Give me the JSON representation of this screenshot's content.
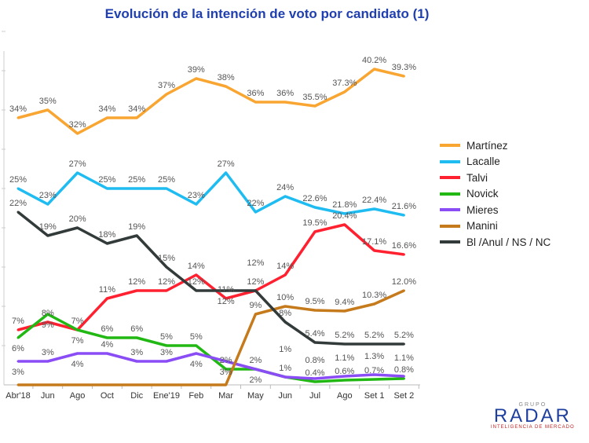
{
  "title": "Evolución de la intención de voto por candidato (1)",
  "logo": {
    "top": "GRUPO",
    "main": "RADAR",
    "sub": "INTELIGENCIA DE MERCADO"
  },
  "chart_data": {
    "type": "line",
    "title": "Evolución de la intención de voto por candidato (1)",
    "categories": [
      "Abr'18",
      "Jun",
      "Ago",
      "Oct",
      "Dic",
      "Ene'19",
      "Feb",
      "Mar",
      "May",
      "Jun",
      "Jul",
      "Ago",
      "Set 1",
      "Set 2"
    ],
    "ylim": [
      0,
      45
    ],
    "grid": false,
    "legend": "right",
    "series": [
      {
        "name": "Martínez",
        "color": "#f9a531",
        "values": [
          34,
          35,
          32,
          34,
          34,
          37,
          39,
          38,
          36,
          36,
          35.5,
          37.3,
          40.2,
          39.3
        ],
        "labels": [
          "34%",
          "35%",
          "32%",
          "34%",
          "34%",
          "37%",
          "39%",
          "38%",
          "36%",
          "36%",
          "35.5%",
          "37.3%",
          "40.2%",
          "39.3%"
        ]
      },
      {
        "name": "Lacalle",
        "color": "#1fbcf2",
        "values": [
          25,
          23,
          27,
          25,
          25,
          25,
          23,
          27,
          22,
          24,
          22.6,
          21.8,
          22.4,
          21.6
        ],
        "labels": [
          "25%",
          "23%",
          "27%",
          "25%",
          "25%",
          "25%",
          "23%",
          "27%",
          "22%",
          "24%",
          "22.6%",
          "21.8%",
          "22.4%",
          "21.6%"
        ]
      },
      {
        "name": "Talvi",
        "color": "#ff2030",
        "values": [
          7,
          8,
          7,
          11,
          12,
          12,
          14,
          11,
          12,
          14,
          19.5,
          20.4,
          17.1,
          16.6
        ],
        "labels": [
          "7%",
          "8%",
          "7%",
          "11%",
          "12%",
          "12%",
          "14%",
          "11%",
          "12%",
          "14%",
          "19.5%",
          "20.4%",
          "17.1%",
          "16.6%"
        ]
      },
      {
        "name": "Novick",
        "color": "#22b814",
        "values": [
          6,
          9,
          7,
          6,
          6,
          5,
          5,
          2,
          2,
          1,
          0.4,
          0.6,
          0.7,
          0.8
        ],
        "labels": [
          "6%",
          "9%",
          "7%",
          "6%",
          "6%",
          "5%",
          "5%",
          "2%",
          "2%",
          "1%",
          "0.4%",
          "0.6%",
          "0.7%",
          "0.8%"
        ]
      },
      {
        "name": "Mieres",
        "color": "#8a4cf5",
        "values": [
          3,
          3,
          4,
          4,
          3,
          3,
          4,
          3,
          2,
          1,
          0.8,
          1.1,
          1.3,
          1.1
        ],
        "labels": [
          "3%",
          "3%",
          "4%",
          "4%",
          "3%",
          "3%",
          "4%",
          "3%",
          "2%",
          "1%",
          "0.8%",
          "1.1%",
          "1.3%",
          "1.1%"
        ]
      },
      {
        "name": "Manini",
        "color": "#c57a1c",
        "values": [
          0,
          0,
          0,
          0,
          0,
          0,
          0,
          0,
          9,
          10,
          9.5,
          9.4,
          10.3,
          12.0
        ],
        "labels": [
          "",
          "",
          "",
          "",
          "",
          "",
          "",
          "",
          "9%",
          "10%",
          "9.5%",
          "9.4%",
          "10.3%",
          "12.0%"
        ]
      },
      {
        "name": "Bl /Anul / NS / NC",
        "color": "#333a3a",
        "values": [
          22,
          19,
          20,
          18,
          19,
          15,
          12,
          12,
          12,
          8,
          5.4,
          5.2,
          5.2,
          5.2
        ],
        "labels": [
          "22%",
          "19%",
          "20%",
          "18%",
          "19%",
          "15%",
          "12%",
          "12%",
          "12%",
          "8%",
          "5.4%",
          "5.2%",
          "5.2%",
          "5.2%"
        ]
      }
    ]
  }
}
